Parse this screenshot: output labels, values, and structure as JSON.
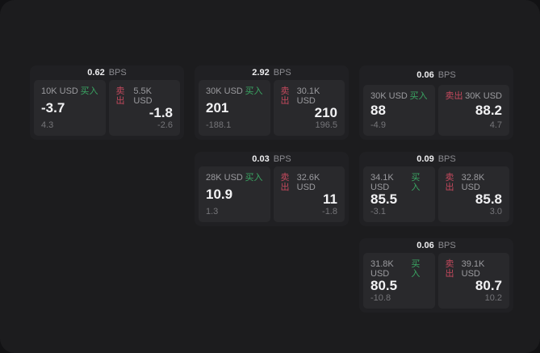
{
  "labels": {
    "bps_unit": "BPS",
    "buy": "买入",
    "sell": "卖出"
  },
  "colors": {
    "background": "#1c1c1e",
    "card": "#202023",
    "panel": "#29292c",
    "buy_green": "#3aa663",
    "sell_red": "#c4495d"
  },
  "cards": [
    {
      "bps_value": "0.62",
      "buy": {
        "amount": "10K USD",
        "price": "-3.7",
        "change": "4.3"
      },
      "sell": {
        "amount": "5.5K USD",
        "price": "-1.8",
        "change": "-2.6"
      }
    },
    {
      "bps_value": "2.92",
      "buy": {
        "amount": "30K USD",
        "price": "201",
        "change": "-188.1"
      },
      "sell": {
        "amount": "30.1K USD",
        "price": "210",
        "change": "196.5"
      }
    },
    {
      "bps_value": "0.06",
      "buy": {
        "amount": "30K USD",
        "price": "88",
        "change": "-4.9"
      },
      "sell": {
        "amount": "30K USD",
        "price": "88.2",
        "change": "4.7"
      }
    },
    {
      "bps_value": "0.03",
      "buy": {
        "amount": "28K USD",
        "price": "10.9",
        "change": "1.3"
      },
      "sell": {
        "amount": "32.6K USD",
        "price": "11",
        "change": "-1.8"
      }
    },
    {
      "bps_value": "0.09",
      "buy": {
        "amount": "34.1K USD",
        "price": "85.5",
        "change": "-3.1"
      },
      "sell": {
        "amount": "32.8K USD",
        "price": "85.8",
        "change": "3.0"
      }
    },
    {
      "bps_value": "0.06",
      "buy": {
        "amount": "31.8K USD",
        "price": "80.5",
        "change": "-10.8"
      },
      "sell": {
        "amount": "39.1K USD",
        "price": "80.7",
        "change": "10.2"
      }
    }
  ]
}
